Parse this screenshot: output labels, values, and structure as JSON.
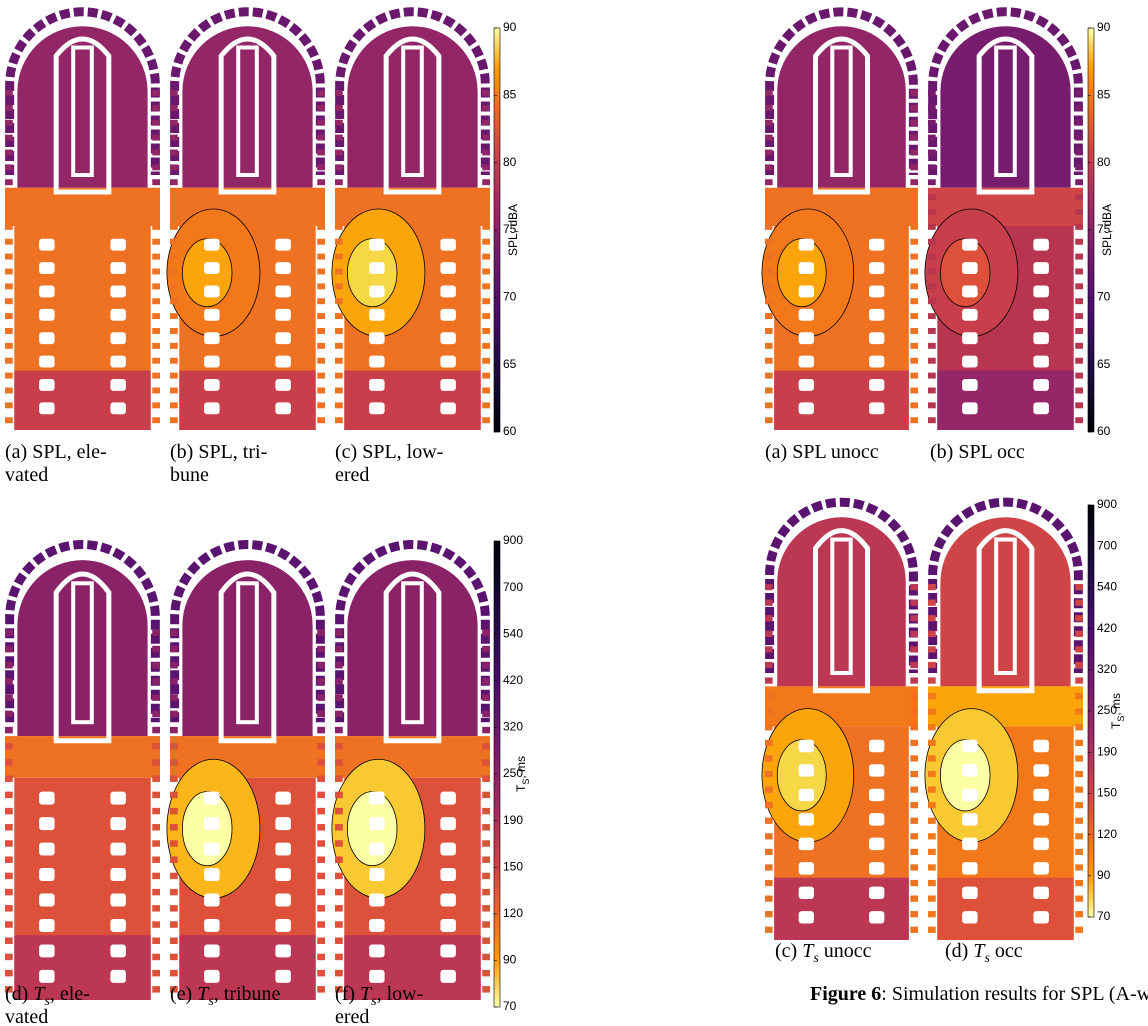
{
  "left": {
    "spl_colorbar": {
      "label": "SPL, dBA",
      "lim": [
        60,
        90
      ],
      "ticks": [
        60,
        65,
        70,
        75,
        80,
        85,
        90
      ]
    },
    "ts_colorbar": {
      "label_main": "T",
      "label_sub": "S",
      "label_unit": ", ms",
      "ticks": [
        70,
        90,
        120,
        150,
        190,
        250,
        320,
        420,
        540,
        700,
        900
      ]
    },
    "captions_top": [
      {
        "label": "(a)",
        "text": "SPL, ele-",
        "text2": "vated"
      },
      {
        "label": "(b)",
        "text": "SPL, tri-",
        "text2": "bune"
      },
      {
        "label": "(c)",
        "text": "SPL, low-",
        "text2": "ered"
      }
    ],
    "captions_bottom": [
      {
        "label": "(d)",
        "sym": "T",
        "sub": "s",
        "text": ", ele-",
        "text2": "vated"
      },
      {
        "label": "(e)",
        "sym": "T",
        "sub": "s",
        "text": ", tribune"
      },
      {
        "label": "(f)",
        "sym": "T",
        "sub": "s",
        "text": ", low-",
        "text2": "ered"
      }
    ]
  },
  "right": {
    "spl_colorbar": {
      "label": "SPL, dBA",
      "lim": [
        60,
        90
      ],
      "ticks": [
        60,
        65,
        70,
        75,
        80,
        85,
        90
      ]
    },
    "ts_colorbar": {
      "label_main": "T",
      "label_sub": "S",
      "label_unit": ", ms",
      "ticks": [
        70,
        90,
        120,
        150,
        190,
        250,
        320,
        420,
        540,
        700,
        900
      ]
    },
    "captions_top": [
      {
        "label": "(a)",
        "text": "SPL unocc"
      },
      {
        "label": "(b)",
        "text": "SPL occ"
      }
    ],
    "captions_bottom": [
      {
        "label": "(c)",
        "sym": "T",
        "sub": "s",
        "text": "unocc"
      },
      {
        "label": "(d)",
        "sym": "T",
        "sub": "s",
        "text": "occ"
      }
    ],
    "figure_caption": {
      "label": "Figure 6",
      "text": ": Simulation results for SPL (A-w"
    }
  }
}
